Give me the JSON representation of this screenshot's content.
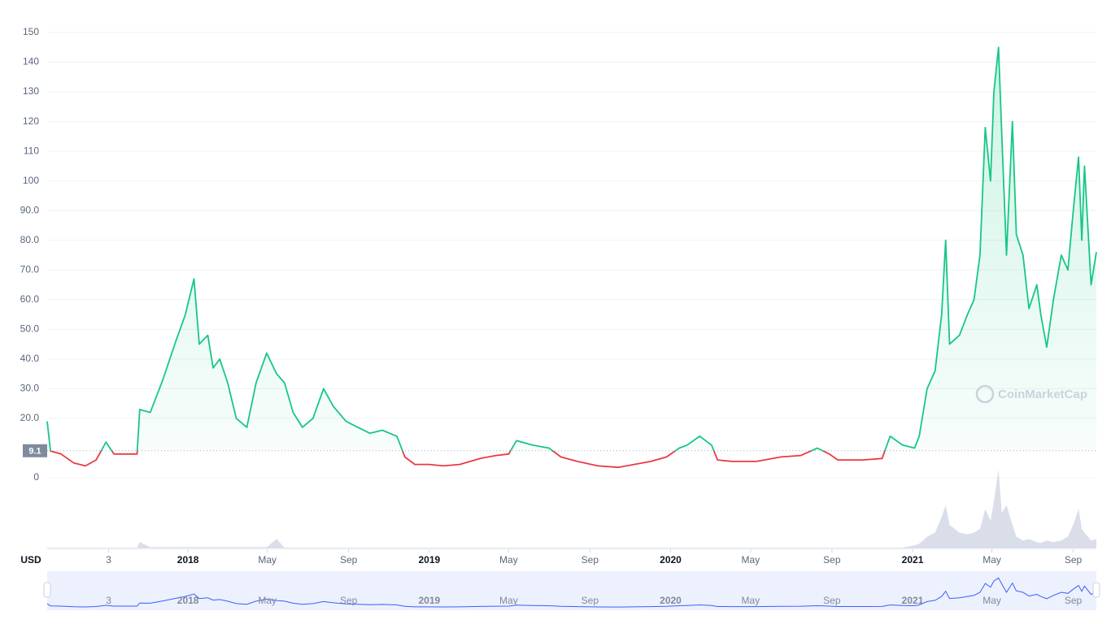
{
  "chart_data": {
    "type": "line",
    "currency_label": "USD",
    "watermark": "CoinMarketCap",
    "reference_price": 9.1,
    "color_up": "#16c784",
    "color_down": "#ea3943",
    "navigator_color": "#3861fb",
    "grid": true,
    "xlim": [
      "2017-06-02",
      "2021-10-06"
    ],
    "ylim": [
      0,
      150
    ],
    "yticks": [
      0,
      {
        "value": 20,
        "label": "20.0"
      },
      {
        "value": 30,
        "label": "30.0"
      },
      {
        "value": 40,
        "label": "40.0"
      },
      {
        "value": 50,
        "label": "50.0"
      },
      {
        "value": 60,
        "label": "60.0"
      },
      {
        "value": 70,
        "label": "70.0"
      },
      {
        "value": 80,
        "label": "80.0"
      },
      {
        "value": 90,
        "label": "90.0"
      },
      100,
      110,
      120,
      130,
      140,
      150
    ],
    "xticks": [
      {
        "value": "2017-09-03",
        "label": "3"
      },
      {
        "value": "2018-01-01",
        "label": "2018"
      },
      {
        "value": "2018-05-01",
        "label": "May"
      },
      {
        "value": "2018-09-01",
        "label": "Sep"
      },
      {
        "value": "2019-01-01",
        "label": "2019"
      },
      {
        "value": "2019-05-01",
        "label": "May"
      },
      {
        "value": "2019-09-01",
        "label": "Sep"
      },
      {
        "value": "2020-01-01",
        "label": "2020"
      },
      {
        "value": "2020-05-01",
        "label": "May"
      },
      {
        "value": "2020-09-01",
        "label": "Sep"
      },
      {
        "value": "2021-01-01",
        "label": "2021"
      },
      {
        "value": "2021-05-01",
        "label": "May"
      },
      {
        "value": "2021-09-01",
        "label": "Sep"
      }
    ],
    "x": [
      "2017-06-02",
      "2017-06-07",
      "2017-06-23",
      "2017-07-12",
      "2017-07-30",
      "2017-08-15",
      "2017-08-30",
      "2017-09-11",
      "2017-09-30",
      "2017-10-16",
      "2017-10-20",
      "2017-11-05",
      "2017-11-24",
      "2017-12-12",
      "2017-12-28",
      "2018-01-10",
      "2018-01-18",
      "2018-01-31",
      "2018-02-08",
      "2018-02-18",
      "2018-03-02",
      "2018-03-15",
      "2018-03-31",
      "2018-04-14",
      "2018-04-30",
      "2018-05-15",
      "2018-05-27",
      "2018-06-09",
      "2018-06-23",
      "2018-07-09",
      "2018-07-25",
      "2018-08-09",
      "2018-08-28",
      "2018-09-15",
      "2018-10-03",
      "2018-10-22",
      "2018-11-13",
      "2018-11-25",
      "2018-12-10",
      "2019-01-01",
      "2019-01-22",
      "2019-02-16",
      "2019-03-19",
      "2019-04-12",
      "2019-05-01",
      "2019-05-13",
      "2019-06-06",
      "2019-07-01",
      "2019-07-19",
      "2019-08-13",
      "2019-09-13",
      "2019-10-14",
      "2019-11-07",
      "2019-12-02",
      "2019-12-26",
      "2020-01-14",
      "2020-01-26",
      "2020-02-14",
      "2020-03-03",
      "2020-03-12",
      "2020-04-03",
      "2020-05-10",
      "2020-06-16",
      "2020-07-16",
      "2020-08-10",
      "2020-08-28",
      "2020-09-10",
      "2020-10-17",
      "2020-11-16",
      "2020-11-28",
      "2020-12-17",
      "2021-01-04",
      "2021-01-11",
      "2021-01-23",
      "2021-02-04",
      "2021-02-14",
      "2021-02-20",
      "2021-02-26",
      "2021-03-13",
      "2021-03-25",
      "2021-04-04",
      "2021-04-13",
      "2021-04-21",
      "2021-04-29",
      "2021-05-04",
      "2021-05-11",
      "2021-05-16",
      "2021-05-23",
      "2021-06-01",
      "2021-06-07",
      "2021-06-17",
      "2021-06-26",
      "2021-07-08",
      "2021-07-14",
      "2021-07-23",
      "2021-08-02",
      "2021-08-14",
      "2021-08-24",
      "2021-09-01",
      "2021-09-09",
      "2021-09-14",
      "2021-09-18",
      "2021-09-28",
      "2021-10-06"
    ],
    "values": [
      19,
      9,
      8,
      5,
      4,
      6,
      12,
      8,
      8,
      8,
      23,
      22,
      33,
      45,
      55,
      67,
      45,
      48,
      37,
      40,
      32,
      20,
      17,
      32,
      42,
      35,
      32,
      22,
      17,
      20,
      30,
      24,
      19,
      17,
      15,
      16,
      14,
      7,
      4.5,
      4.5,
      4,
      4.5,
      6.5,
      7.5,
      8,
      12.5,
      11,
      10,
      7,
      5.5,
      4,
      3.5,
      4.5,
      5.5,
      7,
      10,
      11,
      14,
      11,
      6,
      5.5,
      5.5,
      7,
      7.5,
      10,
      8,
      6,
      6,
      6.5,
      14,
      11,
      10,
      14,
      30,
      36,
      55,
      80,
      45,
      48,
      55,
      60,
      75,
      118,
      100,
      130,
      145,
      115,
      75,
      120,
      82,
      75,
      57,
      65,
      55,
      44,
      60,
      75,
      70,
      90,
      108,
      80,
      105,
      65,
      76
    ],
    "volume": [
      1,
      1,
      1,
      1,
      1,
      1,
      1,
      1,
      1,
      1,
      8,
      1.5,
      1.5,
      1.5,
      1.5,
      1.5,
      1.5,
      1.5,
      1.5,
      1.5,
      1.5,
      1.5,
      1.5,
      1.5,
      1.5,
      12,
      1,
      1,
      1,
      1,
      1,
      1,
      1,
      1,
      1,
      1,
      1,
      1,
      1,
      1,
      1,
      1,
      1,
      1,
      1,
      1,
      1,
      1,
      1,
      1,
      1,
      1,
      1,
      1,
      1,
      1,
      1,
      1,
      1,
      1,
      1,
      1,
      1,
      1,
      1,
      1,
      1,
      1,
      1,
      1,
      1,
      4,
      6,
      15,
      20,
      40,
      55,
      30,
      20,
      18,
      20,
      25,
      50,
      35,
      60,
      100,
      45,
      55,
      30,
      15,
      10,
      12,
      8,
      7,
      10,
      8,
      10,
      15,
      30,
      50,
      25,
      20,
      10,
      12
    ]
  }
}
